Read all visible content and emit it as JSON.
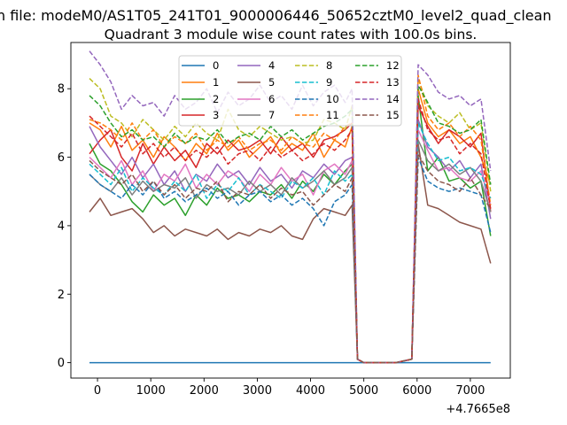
{
  "suptitle": "n file: modeM0/AS1T05_241T01_9000006446_50652cztM0_level2_quad_clean",
  "chart_data": {
    "type": "line",
    "title": "Quadrant 3 module wise count rates with 100.0s bins.",
    "xlabel": "",
    "ylabel": "",
    "x_offset_label": "+4.7665e8",
    "xlim": [
      -500,
      7750
    ],
    "ylim": [
      -0.45,
      9.35
    ],
    "xticks": [
      0,
      1000,
      2000,
      3000,
      4000,
      5000,
      6000,
      7000
    ],
    "xtick_labels": [
      "0",
      "1000",
      "2000",
      "3000",
      "4000",
      "5000",
      "6000",
      "7000"
    ],
    "yticks": [
      0,
      2,
      4,
      6,
      8
    ],
    "ytick_labels": [
      "0",
      "2",
      "4",
      "6",
      "8"
    ],
    "legend_placement": "top-center",
    "legend_columns": 4,
    "x": [
      -150,
      50,
      250,
      450,
      650,
      850,
      1050,
      1250,
      1450,
      1650,
      1850,
      2050,
      2250,
      2450,
      2650,
      2850,
      3050,
      3250,
      3450,
      3650,
      3850,
      4050,
      4250,
      4450,
      4650,
      4780,
      4880,
      5000,
      5300,
      5600,
      5900,
      6020,
      6200,
      6400,
      6600,
      6800,
      7000,
      7200,
      7380
    ],
    "series": [
      {
        "name": "0",
        "color": "#1f77b4",
        "dash": false,
        "values": [
          0,
          0,
          0,
          0,
          0,
          0,
          0,
          0,
          0,
          0,
          0,
          0,
          0,
          0,
          0,
          0,
          0,
          0,
          0,
          0,
          0,
          0,
          0,
          0,
          0,
          0,
          0,
          0,
          0,
          0,
          0,
          0,
          0,
          0,
          0,
          0,
          0,
          0,
          0
        ]
      },
      {
        "name": "1",
        "color": "#ff7f0e",
        "dash": false,
        "values": [
          7.0,
          6.8,
          6.3,
          6.9,
          6.2,
          6.5,
          6.0,
          6.6,
          6.3,
          5.9,
          6.4,
          6.1,
          6.7,
          6.2,
          6.5,
          6.0,
          6.3,
          6.6,
          6.1,
          6.4,
          6.2,
          6.7,
          6.0,
          6.5,
          6.3,
          6.9,
          0.1,
          0,
          0,
          0,
          0.1,
          8.0,
          7.0,
          6.6,
          6.8,
          6.4,
          6.6,
          6.0,
          5.2
        ]
      },
      {
        "name": "2",
        "color": "#2ca02c",
        "dash": false,
        "values": [
          6.4,
          5.8,
          5.6,
          5.2,
          4.7,
          4.4,
          4.9,
          4.6,
          4.8,
          4.3,
          4.9,
          4.6,
          5.1,
          4.8,
          4.9,
          4.7,
          5.0,
          4.9,
          5.2,
          4.8,
          5.3,
          5.0,
          5.5,
          5.2,
          5.6,
          5.8,
          0.1,
          0,
          0,
          0,
          0.1,
          7.8,
          5.6,
          6.0,
          5.3,
          5.4,
          5.1,
          5.3,
          3.7
        ]
      },
      {
        "name": "3",
        "color": "#d62728",
        "dash": false,
        "values": [
          6.1,
          6.5,
          6.8,
          6.0,
          5.6,
          6.4,
          5.8,
          6.3,
          5.9,
          6.2,
          5.7,
          6.4,
          6.1,
          6.5,
          6.2,
          6.3,
          6.5,
          6.1,
          6.6,
          6.2,
          6.4,
          6.0,
          6.5,
          6.6,
          6.8,
          7.0,
          0.1,
          0,
          0,
          0,
          0.1,
          7.5,
          6.9,
          6.4,
          6.8,
          6.6,
          6.3,
          6.7,
          4.4
        ]
      },
      {
        "name": "4",
        "color": "#9467bd",
        "dash": false,
        "values": [
          6.9,
          6.3,
          5.9,
          5.5,
          6.0,
          5.4,
          5.8,
          5.2,
          5.6,
          5.0,
          5.5,
          5.3,
          5.8,
          5.4,
          5.6,
          5.2,
          5.7,
          5.3,
          5.5,
          5.1,
          5.6,
          5.4,
          5.8,
          5.5,
          5.9,
          6.0,
          0.1,
          0,
          0,
          0,
          0.1,
          7.1,
          6.3,
          6.0,
          5.6,
          5.9,
          5.4,
          5.8,
          4.2
        ]
      },
      {
        "name": "5",
        "color": "#8c564b",
        "dash": false,
        "values": [
          4.4,
          4.8,
          4.3,
          4.4,
          4.5,
          4.2,
          3.8,
          4.0,
          3.7,
          3.9,
          3.8,
          3.7,
          3.9,
          3.6,
          3.8,
          3.7,
          3.9,
          3.8,
          4.0,
          3.7,
          3.6,
          4.2,
          4.5,
          4.4,
          4.3,
          4.6,
          0.1,
          0,
          0,
          0,
          0.1,
          6.4,
          4.6,
          4.5,
          4.3,
          4.1,
          4.0,
          3.9,
          2.9
        ]
      },
      {
        "name": "6",
        "color": "#e377c2",
        "dash": false,
        "values": [
          6.0,
          5.7,
          5.4,
          5.9,
          5.2,
          5.6,
          5.0,
          5.5,
          5.3,
          5.8,
          5.1,
          5.5,
          5.2,
          5.6,
          5.4,
          5.0,
          5.5,
          5.2,
          5.7,
          5.3,
          5.5,
          4.9,
          5.6,
          5.8,
          5.5,
          5.9,
          0.1,
          0,
          0,
          0,
          0.1,
          6.8,
          6.2,
          5.6,
          5.7,
          5.4,
          5.3,
          5.6,
          4.6
        ]
      },
      {
        "name": "7",
        "color": "#7f7f7f",
        "dash": false,
        "values": [
          5.5,
          5.2,
          5.0,
          5.4,
          4.9,
          5.3,
          5.0,
          5.2,
          5.1,
          5.4,
          4.8,
          5.2,
          5.0,
          5.1,
          4.9,
          5.3,
          5.0,
          5.2,
          4.9,
          5.4,
          5.1,
          5.3,
          5.6,
          5.2,
          5.4,
          5.7,
          0.1,
          0,
          0,
          0,
          0.1,
          6.5,
          5.9,
          5.6,
          5.8,
          5.5,
          5.7,
          5.3,
          4.4
        ]
      },
      {
        "name": "8",
        "color": "#bcbd22",
        "dash": true,
        "values": [
          8.3,
          8.0,
          7.2,
          7.0,
          6.6,
          7.1,
          6.8,
          6.5,
          6.9,
          6.6,
          7.0,
          6.7,
          6.5,
          7.4,
          6.8,
          6.6,
          6.9,
          6.7,
          6.5,
          6.6,
          6.4,
          6.5,
          7.1,
          7.0,
          6.8,
          7.5,
          0.1,
          0,
          0,
          0,
          0.1,
          8.3,
          7.5,
          7.2,
          7.0,
          7.3,
          6.8,
          7.0,
          5.0
        ]
      },
      {
        "name": "9",
        "color": "#17becf",
        "dash": true,
        "values": [
          5.8,
          5.5,
          5.2,
          5.7,
          5.0,
          5.4,
          5.1,
          4.9,
          5.3,
          5.0,
          5.5,
          4.8,
          5.2,
          5.0,
          5.4,
          4.9,
          5.2,
          5.0,
          4.8,
          5.3,
          5.1,
          5.4,
          4.9,
          5.6,
          5.3,
          5.5,
          0.1,
          0,
          0,
          0,
          0.1,
          7.0,
          6.4,
          5.9,
          6.0,
          5.6,
          5.7,
          5.5,
          4.8
        ]
      },
      {
        "name": "10",
        "color": "#1f77b4",
        "dash": true,
        "values": [
          5.5,
          5.2,
          5.0,
          4.8,
          5.2,
          4.9,
          5.3,
          4.8,
          5.0,
          4.7,
          4.9,
          5.1,
          4.8,
          5.0,
          4.6,
          4.9,
          5.0,
          4.7,
          4.9,
          4.6,
          4.8,
          4.5,
          4.0,
          4.7,
          4.9,
          5.2,
          0.1,
          0,
          0,
          0,
          0.1,
          6.0,
          5.3,
          5.1,
          5.0,
          5.1,
          5.0,
          4.9,
          3.8
        ]
      },
      {
        "name": "11",
        "color": "#ff7f0e",
        "dash": true,
        "values": [
          7.1,
          7.0,
          6.8,
          6.5,
          7.0,
          6.5,
          6.8,
          6.3,
          6.6,
          6.4,
          6.7,
          6.2,
          6.5,
          6.3,
          6.6,
          6.2,
          6.4,
          6.5,
          6.2,
          6.6,
          6.4,
          6.3,
          6.7,
          6.5,
          6.9,
          7.0,
          0.1,
          0,
          0,
          0,
          0.1,
          8.4,
          7.2,
          6.8,
          7.0,
          6.6,
          6.9,
          6.5,
          4.6
        ]
      },
      {
        "name": "12",
        "color": "#2ca02c",
        "dash": true,
        "values": [
          7.8,
          7.5,
          7.0,
          6.6,
          6.8,
          6.5,
          6.6,
          6.3,
          6.7,
          6.4,
          6.6,
          6.5,
          6.8,
          6.4,
          6.6,
          6.7,
          6.5,
          6.9,
          6.6,
          6.8,
          6.5,
          6.7,
          6.9,
          7.0,
          7.2,
          7.4,
          0.1,
          0,
          0,
          0,
          0.1,
          8.1,
          7.6,
          7.0,
          6.9,
          6.7,
          6.8,
          7.1,
          5.2
        ]
      },
      {
        "name": "13",
        "color": "#d62728",
        "dash": true,
        "values": [
          7.2,
          6.9,
          6.6,
          6.3,
          6.7,
          6.1,
          6.4,
          6.0,
          6.3,
          5.9,
          6.2,
          6.0,
          6.3,
          5.8,
          6.1,
          6.2,
          5.9,
          6.3,
          6.0,
          6.2,
          5.9,
          6.1,
          6.4,
          6.2,
          6.5,
          6.8,
          0.1,
          0,
          0,
          0,
          0.1,
          7.7,
          6.8,
          6.5,
          6.6,
          6.1,
          6.4,
          6.1,
          4.5
        ]
      },
      {
        "name": "14",
        "color": "#9467bd",
        "dash": true,
        "values": [
          9.1,
          8.7,
          8.2,
          7.4,
          7.8,
          7.5,
          7.6,
          7.2,
          7.8,
          7.4,
          7.6,
          8.0,
          7.3,
          7.9,
          7.5,
          7.7,
          8.1,
          7.6,
          7.8,
          7.4,
          8.1,
          7.5,
          7.9,
          8.1,
          7.6,
          8.0,
          0.1,
          0,
          0,
          0,
          0.1,
          8.7,
          8.4,
          7.9,
          7.7,
          7.8,
          7.5,
          7.7,
          5.6
        ]
      },
      {
        "name": "15",
        "color": "#8c564b",
        "dash": true,
        "values": [
          5.9,
          5.6,
          5.4,
          5.2,
          5.5,
          5.0,
          5.3,
          4.9,
          5.2,
          4.8,
          5.1,
          5.0,
          5.3,
          4.7,
          5.0,
          4.9,
          5.2,
          4.8,
          5.1,
          4.9,
          5.0,
          4.6,
          4.9,
          5.2,
          5.0,
          5.4,
          0.1,
          0,
          0,
          0,
          0.1,
          6.1,
          5.6,
          5.3,
          5.2,
          5.0,
          5.4,
          4.9,
          4.5
        ]
      }
    ]
  }
}
